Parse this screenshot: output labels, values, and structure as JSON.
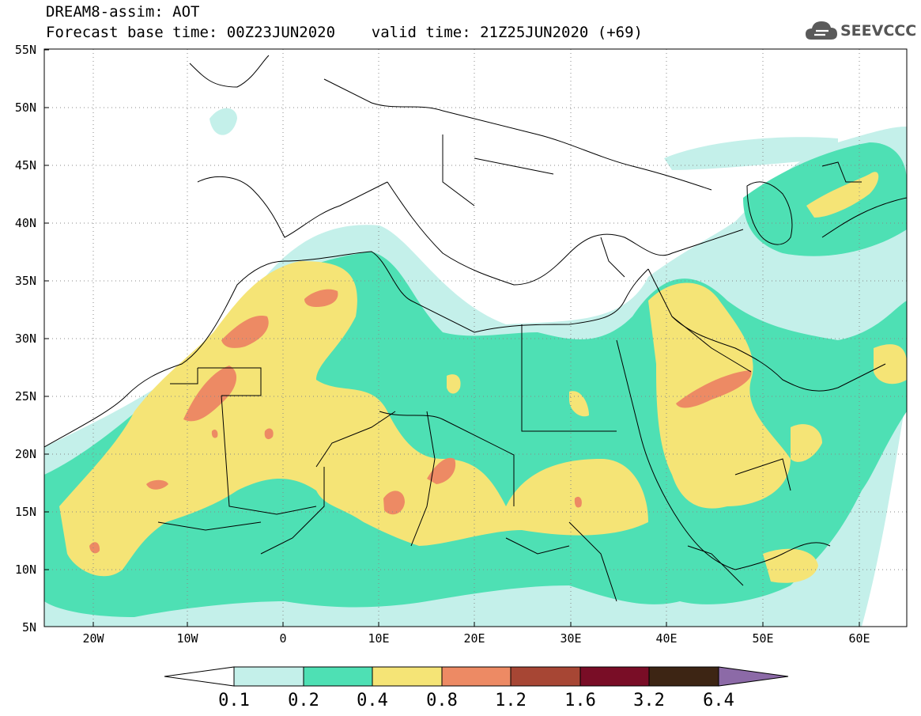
{
  "header": {
    "title_line1": "DREAM8-assim: AOT",
    "title_line2": "Forecast base time: 00Z23JUN2020    valid time: 21Z25JUN2020 (+69)",
    "logo_text": "SEEVCCC",
    "logo_icon": "cloud-icon"
  },
  "map": {
    "lat_labels": [
      "55N",
      "50N",
      "45N",
      "40N",
      "35N",
      "30N",
      "25N",
      "20N",
      "15N",
      "10N",
      "5N"
    ],
    "lon_labels": [
      "20W",
      "10W",
      "0",
      "10E",
      "20E",
      "30E",
      "40E",
      "50E",
      "60E"
    ]
  },
  "colorbar": {
    "labels": [
      "0.1",
      "0.2",
      "0.4",
      "0.8",
      "1.2",
      "1.6",
      "3.2",
      "6.4"
    ],
    "colors": [
      "#ffffff",
      "#c4f0ea",
      "#4ee0b4",
      "#f5e476",
      "#ed8a64",
      "#a74634",
      "#790d26",
      "#3d2514",
      "#8c6aa7"
    ]
  }
}
